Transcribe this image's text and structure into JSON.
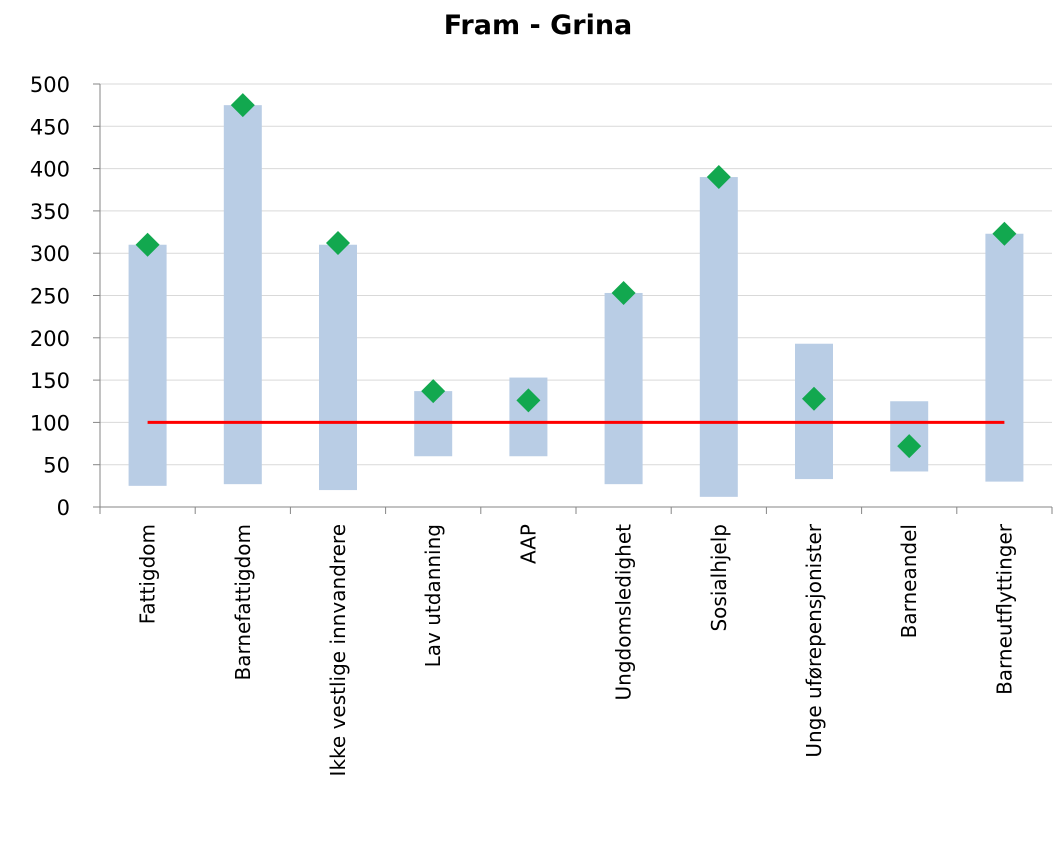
{
  "chart_data": {
    "type": "bar",
    "title": "Fram - Grina",
    "xlabel": "",
    "ylabel": "",
    "ylim": [
      0,
      500
    ],
    "yticks": [
      0,
      50,
      100,
      150,
      200,
      250,
      300,
      350,
      400,
      450,
      500
    ],
    "grid": true,
    "legend": "none",
    "categories": [
      "Fattigdom",
      "Barnefattigdom",
      "Ikke vestlige innvandrere",
      "Lav utdanning",
      "AAP",
      "Ungdomsledighet",
      "Sosialhjelp",
      "Unge uførepensjonister",
      "Barneandel",
      "Barneutflyttinger"
    ],
    "range_bars": {
      "low": [
        25,
        27,
        20,
        60,
        60,
        27,
        12,
        33,
        42,
        30
      ],
      "high": [
        310,
        475,
        310,
        137,
        153,
        253,
        390,
        193,
        125,
        323
      ]
    },
    "markers": [
      310,
      475,
      312,
      137,
      126,
      253,
      390,
      128,
      72,
      323
    ],
    "reference_line": 100,
    "colors": {
      "range_bar": "#b9cde5",
      "marker": "#12a84f",
      "reference_line": "#ff0000",
      "grid": "#d9d9d9",
      "axis": "#868686"
    }
  }
}
